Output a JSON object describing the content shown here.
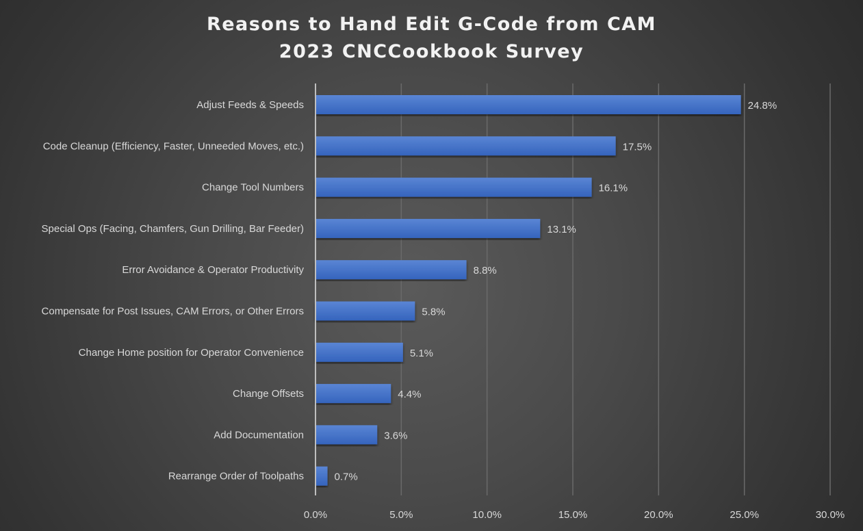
{
  "chart_data": {
    "type": "bar",
    "orientation": "horizontal",
    "title": "Reasons to Hand Edit G-Code from CAM",
    "subtitle": "2023 CNCCookbook Survey",
    "categories": [
      "Adjust Feeds & Speeds",
      "Code Cleanup (Efficiency, Faster, Unneeded Moves, etc.)",
      "Change Tool Numbers",
      "Special Ops (Facing, Chamfers, Gun Drilling, Bar Feeder)",
      "Error Avoidance & Operator Productivity",
      "Compensate for Post Issues, CAM Errors, or Other Errors",
      "Change Home position for Operator Convenience",
      "Change Offsets",
      "Add Documentation",
      "Rearrange Order of Toolpaths"
    ],
    "values": [
      24.8,
      17.5,
      16.1,
      13.1,
      8.8,
      5.8,
      5.1,
      4.4,
      3.6,
      0.7
    ],
    "data_labels": [
      "24.8%",
      "17.5%",
      "16.1%",
      "13.1%",
      "8.8%",
      "5.8%",
      "5.1%",
      "4.4%",
      "3.6%",
      "0.7%"
    ],
    "xlim": [
      0,
      30
    ],
    "xticks": [
      "0.0%",
      "5.0%",
      "10.0%",
      "15.0%",
      "20.0%",
      "25.0%",
      "30.0%"
    ],
    "xlabel": "",
    "ylabel": "",
    "grid": true,
    "bar_color": "#4472c4",
    "background": "dark"
  }
}
